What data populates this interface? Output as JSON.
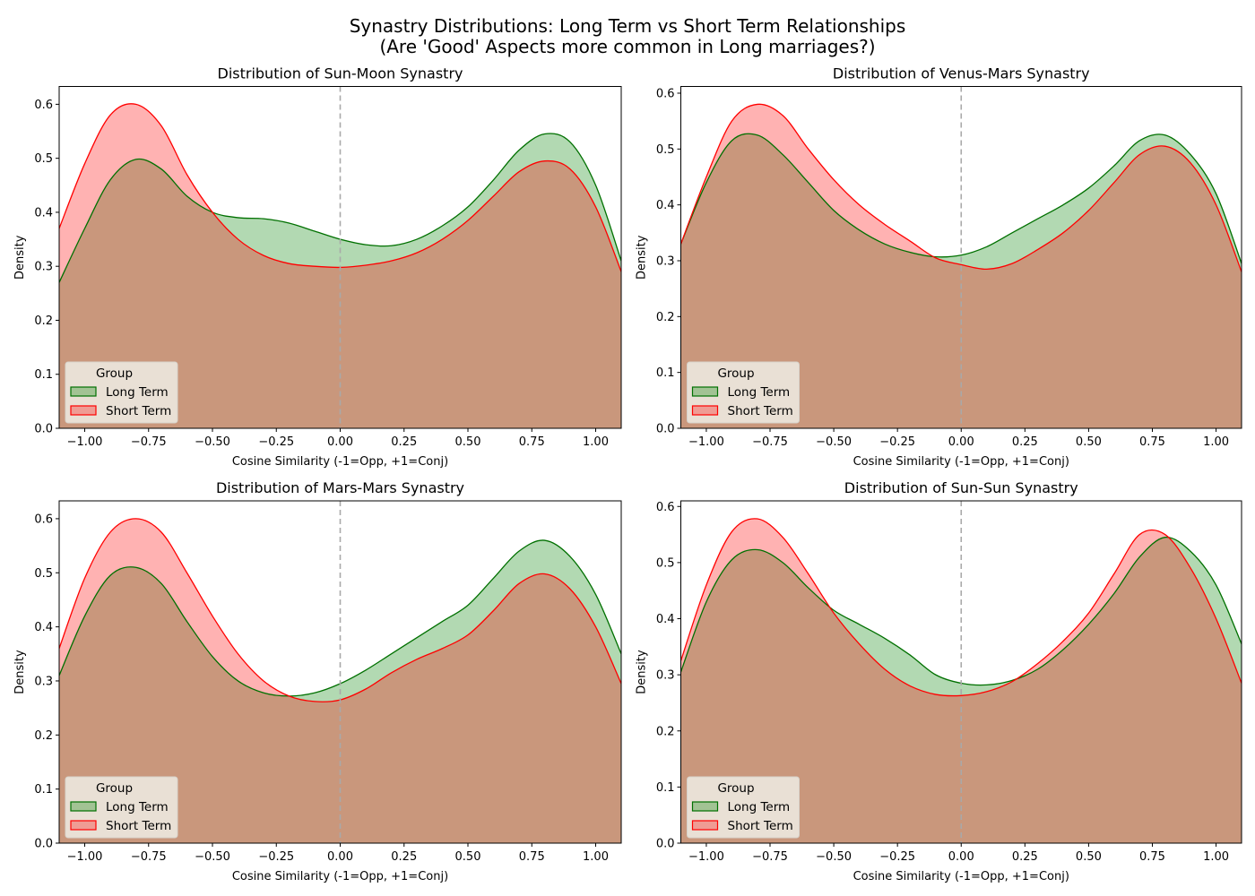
{
  "figure": {
    "title_line1": "Synastry Distributions: Long Term vs Short Term Relationships",
    "title_line2": "(Are 'Good' Aspects more common in Long marriages?)"
  },
  "colors": {
    "long_term_line": "#007000",
    "long_term_fill": "#008000",
    "short_term_line": "#ff0000",
    "short_term_fill": "#ff0000",
    "reference_line": "#a9a9a9",
    "legend_bg": "#efece5"
  },
  "chart_data": [
    {
      "type": "area",
      "title": "Distribution of Sun-Moon Synastry",
      "xlabel": "Cosine Similarity (-1=Opp, +1=Conj)",
      "ylabel": "Density",
      "xlim": [
        -1.1,
        1.1
      ],
      "ylim": [
        0,
        0.633
      ],
      "xticks": [
        -1.0,
        -0.75,
        -0.5,
        -0.25,
        0.0,
        0.25,
        0.5,
        0.75,
        1.0
      ],
      "xtick_labels": [
        "−1.00",
        "−0.75",
        "−0.50",
        "−0.25",
        "0.00",
        "0.25",
        "0.50",
        "0.75",
        "1.00"
      ],
      "yticks": [
        0.0,
        0.1,
        0.2,
        0.3,
        0.4,
        0.5,
        0.6
      ],
      "ytick_labels": [
        "0.0",
        "0.1",
        "0.2",
        "0.3",
        "0.4",
        "0.5",
        "0.6"
      ],
      "reference_line_x": 0,
      "legend": {
        "title": "Group",
        "position": "lower-left",
        "entries": [
          "Long Term",
          "Short Term"
        ]
      },
      "x": [
        -1.1,
        -1.0,
        -0.9,
        -0.8,
        -0.7,
        -0.6,
        -0.5,
        -0.4,
        -0.3,
        -0.2,
        -0.1,
        0.0,
        0.1,
        0.2,
        0.3,
        0.4,
        0.5,
        0.6,
        0.7,
        0.8,
        0.9,
        1.0,
        1.1
      ],
      "series": [
        {
          "name": "Long Term",
          "values": [
            0.27,
            0.37,
            0.46,
            0.498,
            0.48,
            0.43,
            0.4,
            0.39,
            0.388,
            0.38,
            0.365,
            0.35,
            0.34,
            0.338,
            0.35,
            0.375,
            0.41,
            0.46,
            0.515,
            0.545,
            0.53,
            0.45,
            0.31
          ]
        },
        {
          "name": "Short Term",
          "values": [
            0.37,
            0.49,
            0.58,
            0.6,
            0.56,
            0.47,
            0.4,
            0.35,
            0.32,
            0.305,
            0.3,
            0.298,
            0.302,
            0.31,
            0.325,
            0.35,
            0.385,
            0.43,
            0.475,
            0.495,
            0.48,
            0.41,
            0.29
          ]
        }
      ]
    },
    {
      "type": "area",
      "title": "Distribution of Venus-Mars Synastry",
      "xlabel": "Cosine Similarity (-1=Opp, +1=Conj)",
      "ylabel": "Density",
      "xlim": [
        -1.1,
        1.1
      ],
      "ylim": [
        0,
        0.612
      ],
      "xticks": [
        -1.0,
        -0.75,
        -0.5,
        -0.25,
        0.0,
        0.25,
        0.5,
        0.75,
        1.0
      ],
      "xtick_labels": [
        "−1.00",
        "−0.75",
        "−0.50",
        "−0.25",
        "0.00",
        "0.25",
        "0.50",
        "0.75",
        "1.00"
      ],
      "yticks": [
        0.0,
        0.1,
        0.2,
        0.3,
        0.4,
        0.5,
        0.6
      ],
      "ytick_labels": [
        "0.0",
        "0.1",
        "0.2",
        "0.3",
        "0.4",
        "0.5",
        "0.6"
      ],
      "reference_line_x": 0,
      "legend": {
        "title": "Group",
        "position": "lower-left",
        "entries": [
          "Long Term",
          "Short Term"
        ]
      },
      "x": [
        -1.1,
        -1.0,
        -0.9,
        -0.8,
        -0.7,
        -0.6,
        -0.5,
        -0.4,
        -0.3,
        -0.2,
        -0.1,
        0.0,
        0.1,
        0.2,
        0.3,
        0.4,
        0.5,
        0.6,
        0.7,
        0.8,
        0.9,
        1.0,
        1.1
      ],
      "series": [
        {
          "name": "Long Term",
          "values": [
            0.33,
            0.44,
            0.515,
            0.525,
            0.49,
            0.44,
            0.39,
            0.355,
            0.33,
            0.315,
            0.307,
            0.31,
            0.325,
            0.35,
            0.375,
            0.4,
            0.43,
            0.47,
            0.515,
            0.525,
            0.49,
            0.42,
            0.295
          ]
        },
        {
          "name": "Short Term",
          "values": [
            0.33,
            0.45,
            0.55,
            0.58,
            0.56,
            0.5,
            0.445,
            0.4,
            0.365,
            0.335,
            0.305,
            0.293,
            0.285,
            0.295,
            0.32,
            0.35,
            0.39,
            0.44,
            0.49,
            0.505,
            0.475,
            0.4,
            0.28
          ]
        }
      ]
    },
    {
      "type": "area",
      "title": "Distribution of Mars-Mars Synastry",
      "xlabel": "Cosine Similarity (-1=Opp, +1=Conj)",
      "ylabel": "Density",
      "xlim": [
        -1.1,
        1.1
      ],
      "ylim": [
        0,
        0.633
      ],
      "xticks": [
        -1.0,
        -0.75,
        -0.5,
        -0.25,
        0.0,
        0.25,
        0.5,
        0.75,
        1.0
      ],
      "xtick_labels": [
        "−1.00",
        "−0.75",
        "−0.50",
        "−0.25",
        "0.00",
        "0.25",
        "0.50",
        "0.75",
        "1.00"
      ],
      "yticks": [
        0.0,
        0.1,
        0.2,
        0.3,
        0.4,
        0.5,
        0.6
      ],
      "ytick_labels": [
        "0.0",
        "0.1",
        "0.2",
        "0.3",
        "0.4",
        "0.5",
        "0.6"
      ],
      "reference_line_x": 0,
      "legend": {
        "title": "Group",
        "position": "lower-left",
        "entries": [
          "Long Term",
          "Short Term"
        ]
      },
      "x": [
        -1.1,
        -1.0,
        -0.9,
        -0.8,
        -0.7,
        -0.6,
        -0.5,
        -0.4,
        -0.3,
        -0.2,
        -0.1,
        0.0,
        0.1,
        0.2,
        0.3,
        0.4,
        0.5,
        0.6,
        0.7,
        0.8,
        0.9,
        1.0,
        1.1
      ],
      "series": [
        {
          "name": "Long Term",
          "values": [
            0.31,
            0.42,
            0.495,
            0.51,
            0.48,
            0.41,
            0.345,
            0.3,
            0.278,
            0.272,
            0.278,
            0.295,
            0.32,
            0.35,
            0.38,
            0.41,
            0.44,
            0.49,
            0.54,
            0.56,
            0.53,
            0.46,
            0.35
          ]
        },
        {
          "name": "Short Term",
          "values": [
            0.36,
            0.49,
            0.575,
            0.6,
            0.575,
            0.5,
            0.42,
            0.35,
            0.3,
            0.272,
            0.262,
            0.265,
            0.285,
            0.315,
            0.34,
            0.36,
            0.385,
            0.43,
            0.48,
            0.498,
            0.47,
            0.4,
            0.295
          ]
        }
      ]
    },
    {
      "type": "area",
      "title": "Distribution of Sun-Sun Synastry",
      "xlabel": "Cosine Similarity (-1=Opp, +1=Conj)",
      "ylabel": "Density",
      "xlim": [
        -1.1,
        1.1
      ],
      "ylim": [
        0,
        0.61
      ],
      "xticks": [
        -1.0,
        -0.75,
        -0.5,
        -0.25,
        0.0,
        0.25,
        0.5,
        0.75,
        1.0
      ],
      "xtick_labels": [
        "−1.00",
        "−0.75",
        "−0.50",
        "−0.25",
        "0.00",
        "0.25",
        "0.50",
        "0.75",
        "1.00"
      ],
      "yticks": [
        0.0,
        0.1,
        0.2,
        0.3,
        0.4,
        0.5,
        0.6
      ],
      "ytick_labels": [
        "0.0",
        "0.1",
        "0.2",
        "0.3",
        "0.4",
        "0.5",
        "0.6"
      ],
      "reference_line_x": 0,
      "legend": {
        "title": "Group",
        "position": "lower-left",
        "entries": [
          "Long Term",
          "Short Term"
        ]
      },
      "x": [
        -1.1,
        -1.0,
        -0.9,
        -0.8,
        -0.7,
        -0.6,
        -0.5,
        -0.4,
        -0.3,
        -0.2,
        -0.1,
        0.0,
        0.1,
        0.2,
        0.3,
        0.4,
        0.5,
        0.6,
        0.7,
        0.8,
        0.9,
        1.0,
        1.1
      ],
      "series": [
        {
          "name": "Long Term",
          "values": [
            0.305,
            0.43,
            0.505,
            0.523,
            0.5,
            0.455,
            0.415,
            0.39,
            0.365,
            0.335,
            0.3,
            0.285,
            0.282,
            0.29,
            0.31,
            0.345,
            0.39,
            0.445,
            0.51,
            0.545,
            0.52,
            0.46,
            0.355
          ]
        },
        {
          "name": "Short Term",
          "values": [
            0.325,
            0.46,
            0.555,
            0.578,
            0.545,
            0.48,
            0.41,
            0.355,
            0.31,
            0.28,
            0.265,
            0.263,
            0.27,
            0.288,
            0.32,
            0.36,
            0.41,
            0.48,
            0.55,
            0.55,
            0.49,
            0.4,
            0.285
          ]
        }
      ]
    }
  ]
}
